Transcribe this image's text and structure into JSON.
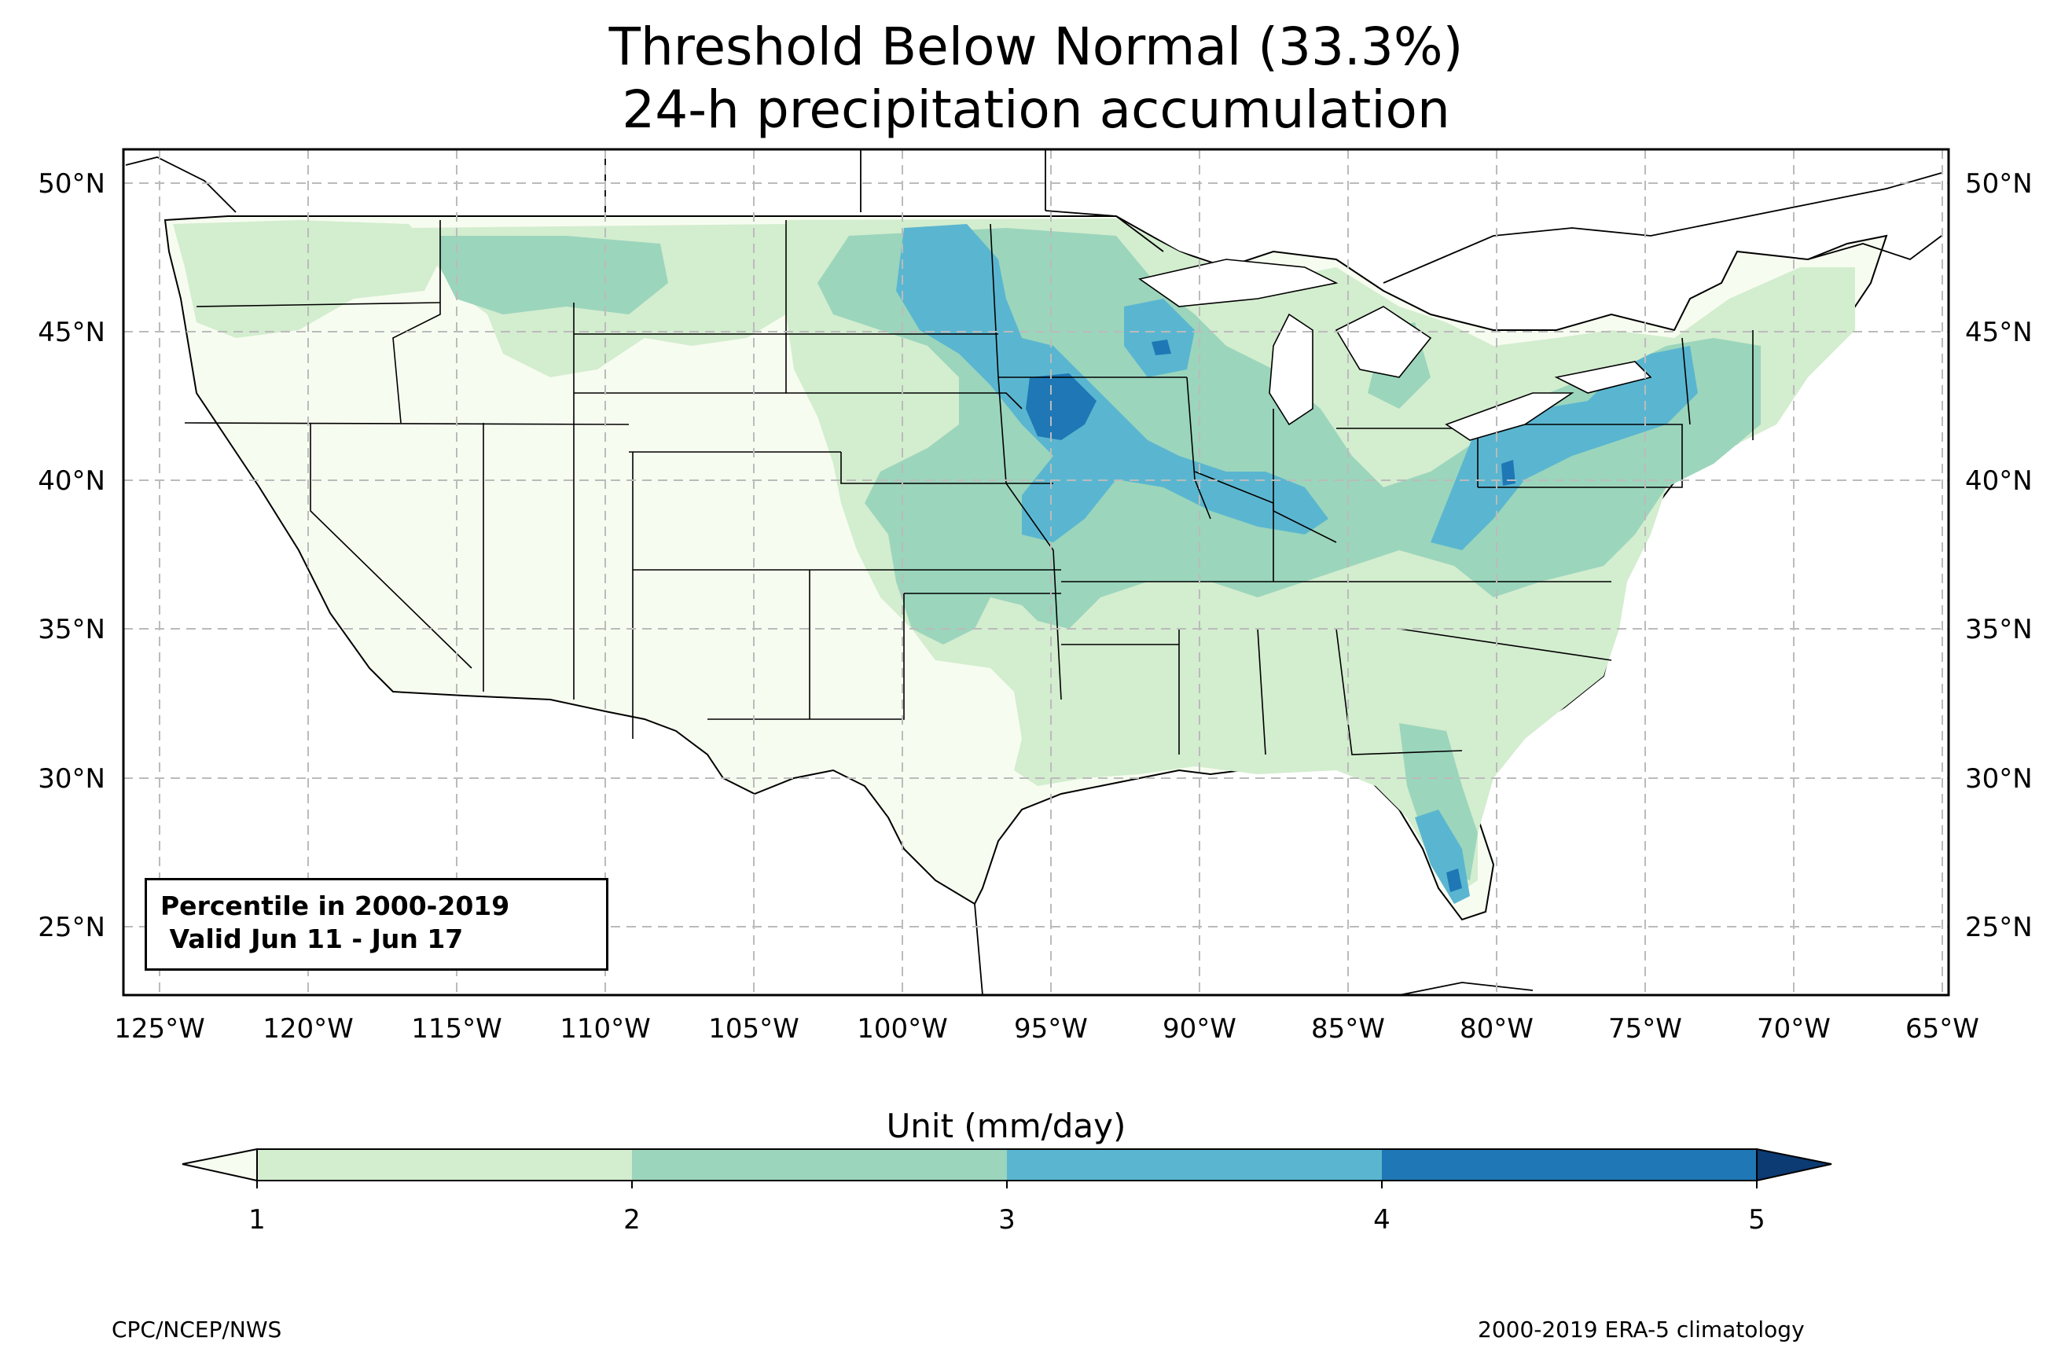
{
  "title_line1": "Threshold Below Normal (33.3%)",
  "title_line2": "24-h precipitation accumulation",
  "info_box": {
    "line1": "Percentile in 2000-2019",
    "line2": " Valid Jun 11 - Jun 17"
  },
  "colorbar": {
    "title": "Unit (mm/day)",
    "ticks": [
      "1",
      "2",
      "3",
      "4",
      "5"
    ],
    "colors": [
      "#d3edcf",
      "#9bd5bc",
      "#5ab6d0",
      "#1f78b5"
    ],
    "under_color": "#f7fcf0",
    "over_color": "#0c3a73"
  },
  "footer_left": "CPC/NCEP/NWS",
  "footer_right": "2000-2019 ERA-5 climatology",
  "map": {
    "lon_labels": [
      "125°W",
      "120°W",
      "115°W",
      "110°W",
      "105°W",
      "100°W",
      "95°W",
      "90°W",
      "85°W",
      "80°W",
      "75°W",
      "70°W",
      "65°W"
    ],
    "lat_labels": [
      "50°N",
      "45°N",
      "40°N",
      "35°N",
      "30°N",
      "25°N"
    ],
    "background_color": "#f7fcf0"
  }
}
